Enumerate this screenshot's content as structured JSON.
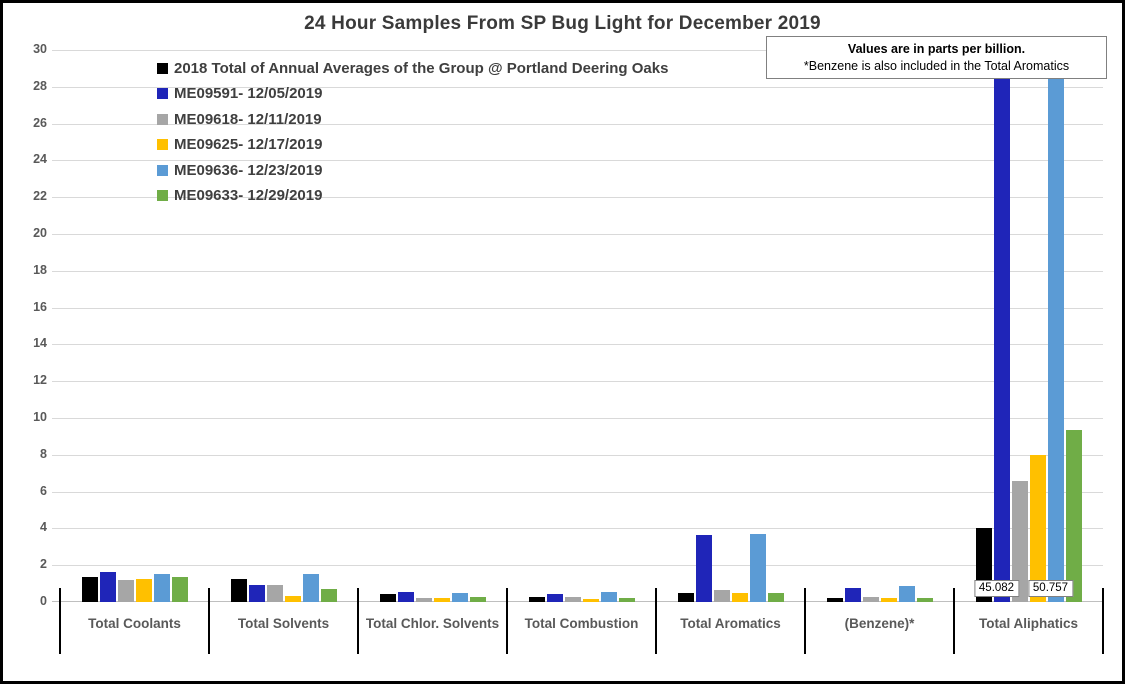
{
  "chart_data": {
    "type": "bar",
    "title": "24 Hour Samples From SP Bug Light for December 2019",
    "note": [
      "Values are in parts per billion.",
      "*Benzene is also included in the Total Aromatics"
    ],
    "categories": [
      "Total Coolants",
      "Total Solvents",
      "Total Chlor. Solvents",
      "Total Combustion",
      "Total Aromatics",
      "(Benzene)*",
      "Total Aliphatics"
    ],
    "series": [
      {
        "name": "2018 Total of Annual Averages of the Group @ Portland Deering Oaks",
        "color": "#000000",
        "values": [
          1.35,
          1.25,
          0.45,
          0.3,
          0.5,
          0.2,
          4.0
        ]
      },
      {
        "name": "ME09591- 12/05/2019",
        "color": "#1f25b8",
        "values": [
          1.65,
          0.95,
          0.55,
          0.45,
          3.65,
          0.75,
          45.082
        ]
      },
      {
        "name": "ME09618- 12/11/2019",
        "color": "#a6a6a6",
        "values": [
          1.2,
          0.9,
          0.2,
          0.25,
          0.65,
          0.25,
          6.6
        ]
      },
      {
        "name": "ME09625- 12/17/2019",
        "color": "#ffc000",
        "values": [
          1.25,
          0.35,
          0.2,
          0.15,
          0.5,
          0.2,
          8.0
        ]
      },
      {
        "name": "ME09636- 12/23/2019",
        "color": "#5b9bd5",
        "values": [
          1.5,
          1.55,
          0.5,
          0.55,
          3.7,
          0.85,
          50.757
        ]
      },
      {
        "name": "ME09633- 12/29/2019",
        "color": "#70ad47",
        "values": [
          1.35,
          0.7,
          0.25,
          0.2,
          0.5,
          0.2,
          9.35
        ]
      }
    ],
    "ylim": [
      0,
      30
    ],
    "y_ticks": [
      0,
      2,
      4,
      6,
      8,
      10,
      12,
      14,
      16,
      18,
      20,
      22,
      24,
      26,
      28,
      30
    ],
    "grid": true,
    "legend_position": "top-left",
    "data_labels": [
      {
        "series_index": 1,
        "category_index": 6,
        "text": "45.082"
      },
      {
        "series_index": 4,
        "category_index": 6,
        "text": "50.757"
      }
    ]
  }
}
